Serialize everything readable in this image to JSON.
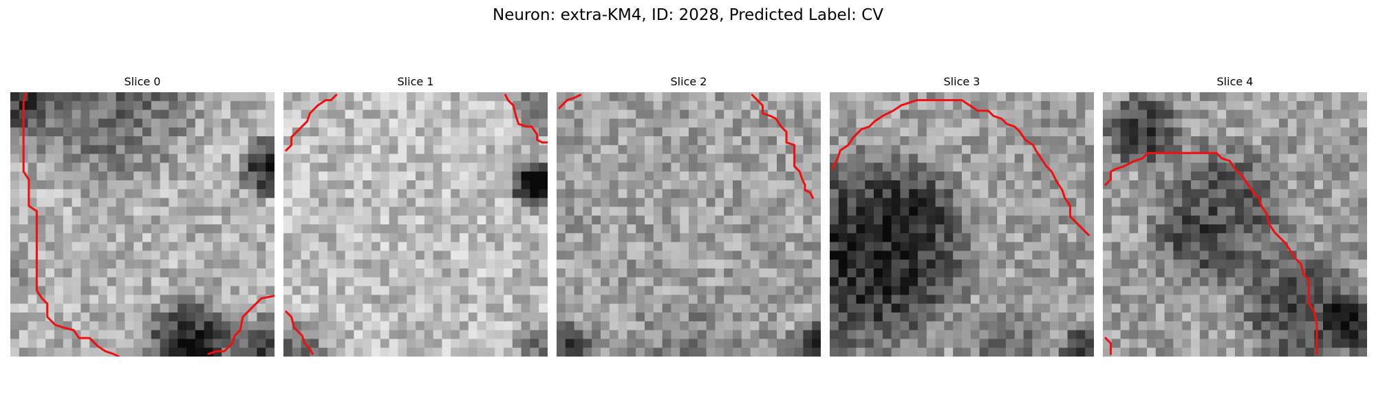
{
  "figure": {
    "title": "Neuron: extra-KM4, ID: 2028, Predicted Label: CV"
  },
  "colors": {
    "contour": "#ee1111",
    "background": "#ffffff",
    "text": "#000000"
  },
  "panels": [
    {
      "title": "Slice 0",
      "contours": [
        [
          [
            1.2,
            0
          ],
          [
            1,
            0.8
          ],
          [
            1,
            3
          ],
          [
            1,
            6
          ],
          [
            1.4,
            6.6
          ],
          [
            1.4,
            8.6
          ],
          [
            2,
            9
          ],
          [
            2,
            11
          ],
          [
            2,
            13.4
          ],
          [
            2,
            15
          ],
          [
            2.4,
            15.6
          ],
          [
            2.8,
            16
          ],
          [
            2.8,
            17
          ],
          [
            3.4,
            17.6
          ],
          [
            4,
            17.8
          ],
          [
            4.8,
            18
          ],
          [
            5.2,
            18.6
          ],
          [
            6,
            18.6
          ],
          [
            6.6,
            19.2
          ],
          [
            7.2,
            19.6
          ],
          [
            7.8,
            19.8
          ],
          [
            8.2,
            20
          ]
        ],
        [
          [
            15,
            19.8
          ],
          [
            15.6,
            19.6
          ],
          [
            16.2,
            19.6
          ],
          [
            16.8,
            19
          ],
          [
            17,
            18.4
          ],
          [
            17.4,
            18
          ],
          [
            17.6,
            17
          ],
          [
            18,
            16.6
          ],
          [
            18.6,
            16
          ],
          [
            19,
            15.6
          ],
          [
            20,
            15.4
          ]
        ]
      ]
    },
    {
      "title": "Slice 1",
      "contours": [
        [
          [
            0.2,
            4.4
          ],
          [
            0.6,
            4
          ],
          [
            0.6,
            3.4
          ],
          [
            1.2,
            2.8
          ],
          [
            1.8,
            2.2
          ],
          [
            2,
            1.6
          ],
          [
            2.6,
            1
          ],
          [
            3.2,
            0.6
          ],
          [
            3.6,
            0.6
          ],
          [
            4,
            0.2
          ]
        ],
        [
          [
            16.8,
            0.2
          ],
          [
            17,
            0.6
          ],
          [
            17.4,
            1
          ],
          [
            17.6,
            1.8
          ],
          [
            17.8,
            2.4
          ],
          [
            18.4,
            2.6
          ],
          [
            18.8,
            2.6
          ],
          [
            19.2,
            3.2
          ],
          [
            19.2,
            3.6
          ],
          [
            19.6,
            3.8
          ],
          [
            20,
            3.8
          ]
        ],
        [
          [
            0.2,
            16.6
          ],
          [
            0.6,
            17
          ],
          [
            0.8,
            17.8
          ],
          [
            1.4,
            18.4
          ],
          [
            1.6,
            19
          ],
          [
            2,
            19.4
          ],
          [
            2.2,
            19.8
          ]
        ]
      ]
    },
    {
      "title": "Slice 2",
      "contours": [
        [
          [
            0.2,
            1.2
          ],
          [
            0.6,
            0.8
          ],
          [
            0.8,
            0.6
          ],
          [
            1.4,
            0.4
          ],
          [
            1.8,
            0.2
          ]
        ],
        [
          [
            14.8,
            0.2
          ],
          [
            15.2,
            0.6
          ],
          [
            15.6,
            1
          ],
          [
            15.6,
            1.6
          ],
          [
            16.2,
            1.8
          ],
          [
            16.6,
            2
          ],
          [
            17,
            2.6
          ],
          [
            17.4,
            3
          ],
          [
            17.4,
            3.8
          ],
          [
            18,
            4
          ],
          [
            18,
            5
          ],
          [
            18,
            5.6
          ],
          [
            18.4,
            6
          ],
          [
            18.6,
            6.6
          ],
          [
            18.8,
            7
          ],
          [
            18.8,
            7.4
          ],
          [
            19.2,
            7.6
          ],
          [
            19.4,
            8
          ]
        ]
      ]
    },
    {
      "title": "Slice 3",
      "contours": [
        [
          [
            0.2,
            5.8
          ],
          [
            0.6,
            5
          ],
          [
            0.8,
            4.4
          ],
          [
            1.4,
            4
          ],
          [
            1.8,
            3.4
          ],
          [
            2.4,
            2.8
          ],
          [
            3,
            2.6
          ],
          [
            3.4,
            2.2
          ],
          [
            4,
            1.8
          ],
          [
            4.8,
            1.4
          ],
          [
            5.4,
            1
          ],
          [
            6,
            0.8
          ],
          [
            6.6,
            0.6
          ],
          [
            7.4,
            0.6
          ],
          [
            8.6,
            0.6
          ],
          [
            10,
            0.6
          ],
          [
            10.6,
            1
          ],
          [
            11.2,
            1.4
          ],
          [
            12,
            1.4
          ],
          [
            12.4,
            1.8
          ],
          [
            13,
            2
          ],
          [
            13.4,
            2.4
          ],
          [
            14,
            2.6
          ],
          [
            14.4,
            3
          ],
          [
            14.8,
            3.6
          ],
          [
            15.4,
            4
          ],
          [
            15.6,
            4.4
          ],
          [
            16,
            5
          ],
          [
            16.4,
            5.6
          ],
          [
            16.8,
            6
          ],
          [
            17.2,
            6.8
          ],
          [
            17.6,
            7.4
          ],
          [
            17.8,
            8
          ],
          [
            18.2,
            8.6
          ],
          [
            18.2,
            9.4
          ],
          [
            18.8,
            10
          ],
          [
            19.6,
            10.8
          ]
        ]
      ]
    },
    {
      "title": "Slice 4",
      "contours": [
        [
          [
            0.2,
            7
          ],
          [
            0.6,
            6.6
          ],
          [
            0.6,
            6
          ],
          [
            1,
            5.8
          ],
          [
            1.6,
            5.6
          ],
          [
            2.4,
            5.2
          ],
          [
            3,
            5
          ],
          [
            3.4,
            4.6
          ],
          [
            4.4,
            4.6
          ],
          [
            5.6,
            4.6
          ],
          [
            7,
            4.6
          ],
          [
            8.6,
            4.6
          ],
          [
            9,
            5
          ],
          [
            9.6,
            5.2
          ],
          [
            10,
            5.8
          ],
          [
            10.6,
            6.4
          ],
          [
            11,
            7
          ],
          [
            11.4,
            7.6
          ],
          [
            11.8,
            8
          ],
          [
            12,
            8.6
          ],
          [
            12.4,
            9.2
          ],
          [
            12.6,
            10
          ],
          [
            13,
            10.6
          ],
          [
            13.4,
            11
          ],
          [
            13.8,
            11.4
          ],
          [
            14.2,
            12
          ],
          [
            14.6,
            12.6
          ],
          [
            15,
            13
          ],
          [
            15.2,
            13.8
          ],
          [
            15.6,
            14.2
          ],
          [
            15.6,
            15
          ],
          [
            15.6,
            16
          ],
          [
            16,
            16.6
          ],
          [
            16.2,
            17.6
          ],
          [
            16.2,
            19
          ],
          [
            16.2,
            19.8
          ]
        ],
        [
          [
            0.2,
            18.6
          ],
          [
            0.6,
            19
          ],
          [
            0.6,
            19.8
          ]
        ]
      ]
    }
  ]
}
